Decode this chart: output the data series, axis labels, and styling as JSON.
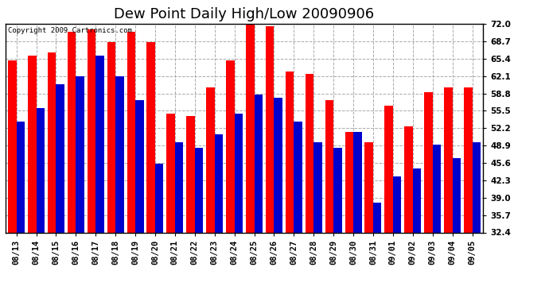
{
  "title": "Dew Point Daily High/Low 20090906",
  "copyright": "Copyright 2009 Cartronics.com",
  "dates": [
    "08/13",
    "08/14",
    "08/15",
    "08/16",
    "08/17",
    "08/18",
    "08/19",
    "08/20",
    "08/21",
    "08/22",
    "08/23",
    "08/24",
    "08/25",
    "08/26",
    "08/27",
    "08/28",
    "08/29",
    "08/30",
    "08/31",
    "09/01",
    "09/02",
    "09/03",
    "09/04",
    "09/05"
  ],
  "highs": [
    65.0,
    66.0,
    66.5,
    70.5,
    71.0,
    68.5,
    70.5,
    68.5,
    55.0,
    54.5,
    60.0,
    65.0,
    72.0,
    71.5,
    63.0,
    62.5,
    57.5,
    51.5,
    49.5,
    56.5,
    52.5,
    59.0,
    60.0,
    60.0
  ],
  "lows": [
    53.5,
    56.0,
    60.5,
    62.0,
    66.0,
    62.0,
    57.5,
    45.5,
    49.5,
    48.5,
    51.0,
    55.0,
    58.5,
    58.0,
    53.5,
    49.5,
    48.5,
    51.5,
    38.0,
    43.0,
    44.5,
    49.0,
    46.5,
    49.5
  ],
  "high_color": "#ff0000",
  "low_color": "#0000cc",
  "bg_color": "#ffffff",
  "grid_color": "#aaaaaa",
  "yticks": [
    32.4,
    35.7,
    39.0,
    42.3,
    45.6,
    48.9,
    52.2,
    55.5,
    58.8,
    62.1,
    65.4,
    68.7,
    72.0
  ],
  "ymin": 32.4,
  "ymax": 72.0,
  "title_fontsize": 13,
  "tick_fontsize": 7.5,
  "copyright_fontsize": 6.5
}
